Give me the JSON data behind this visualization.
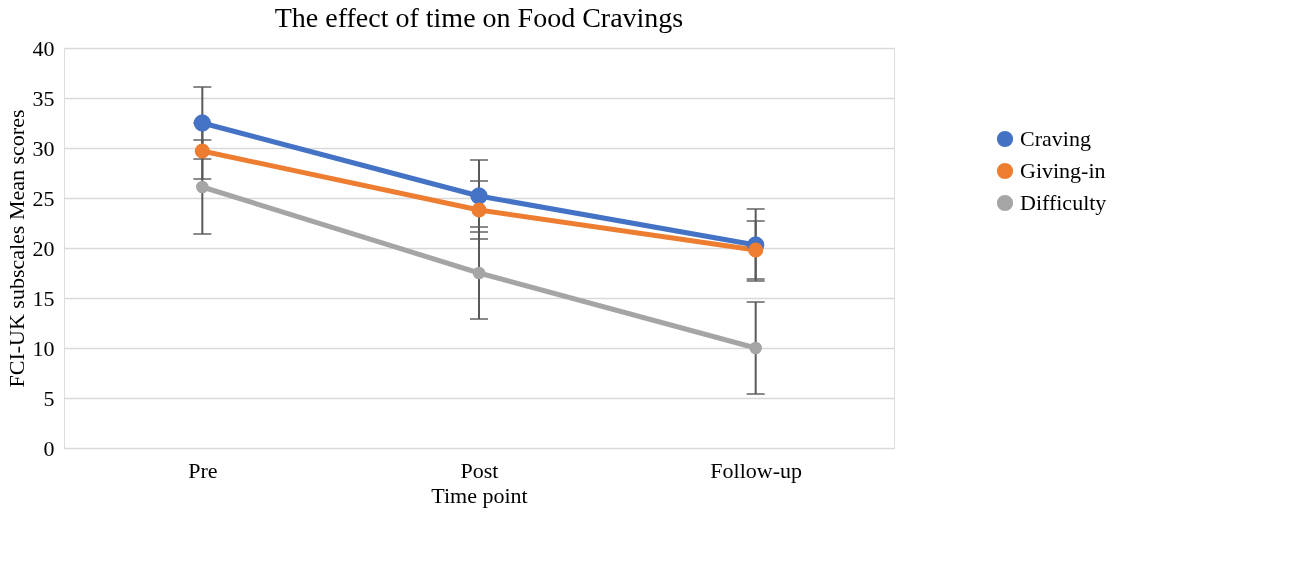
{
  "chart_data": {
    "type": "line",
    "title": "The effect of time on Food Cravings",
    "xlabel": "Time point",
    "ylabel": "FCI-UK subscales Mean scores",
    "categories": [
      "Pre",
      "Post",
      "Follow-up"
    ],
    "series": [
      {
        "name": "Craving",
        "color": "#4472c4",
        "values": [
          32.5,
          25.2,
          20.3
        ],
        "errors": [
          3.6,
          3.6,
          3.6
        ]
      },
      {
        "name": "Giving-in",
        "color": "#ed7d31",
        "values": [
          29.7,
          23.8,
          19.8
        ],
        "errors": [
          2.8,
          2.9,
          2.9
        ]
      },
      {
        "name": "Difficulty",
        "color": "#a5a5a5",
        "values": [
          26.1,
          17.5,
          10.0
        ],
        "errors": [
          4.7,
          4.6,
          4.6
        ]
      }
    ],
    "ylim": [
      0,
      40
    ],
    "yticks": [
      0,
      5,
      10,
      15,
      20,
      25,
      30,
      35,
      40
    ],
    "grid": "y",
    "legend": "right",
    "marker": "circle",
    "line_style": "solid"
  }
}
